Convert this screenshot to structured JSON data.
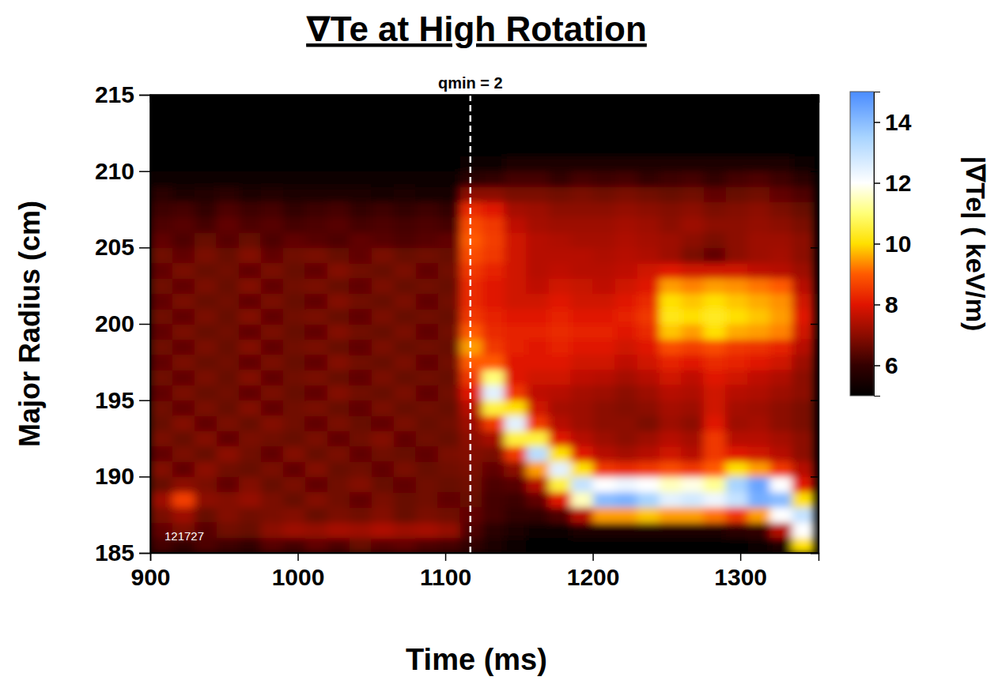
{
  "chart_data": {
    "type": "heatmap",
    "title": "∇Te at High Rotation",
    "x_label": "Time (ms)",
    "y_label": "Major Radius (cm)",
    "xlim": [
      900,
      1353
    ],
    "ylim": [
      185,
      215
    ],
    "xticks": [
      900,
      1000,
      1100,
      1200,
      1300
    ],
    "yticks": [
      185,
      190,
      195,
      200,
      205,
      210,
      215
    ],
    "annotations": [
      {
        "text": "qmin = 2",
        "x": 1117
      },
      {
        "text": "121727"
      }
    ],
    "colorbar": {
      "label": "|∇Te| ( keV/m)",
      "range": [
        5,
        15
      ],
      "ticks": [
        6,
        8,
        10,
        12,
        14
      ]
    },
    "x_edges": [
      900,
      915,
      930,
      945,
      960,
      975,
      990,
      1005,
      1020,
      1035,
      1050,
      1065,
      1080,
      1095,
      1110,
      1125,
      1140,
      1155,
      1170,
      1185,
      1200,
      1215,
      1230,
      1245,
      1260,
      1275,
      1290,
      1305,
      1320,
      1335,
      1350
    ],
    "y_edges": [
      185,
      186,
      187,
      188,
      189,
      190,
      191,
      192,
      193,
      194,
      195,
      196,
      197,
      198,
      199,
      200,
      201,
      202,
      203,
      204,
      205,
      206,
      207,
      208,
      209,
      210,
      211,
      212,
      213,
      214,
      215
    ],
    "z": [
      [
        6.2,
        6.0,
        6.3,
        6.1,
        6.0,
        6.4,
        6.2,
        6.5,
        6.3,
        6.6,
        6.4,
        6.5,
        6.3,
        6.2,
        6.0,
        5.5,
        5.2,
        5.0,
        5.0,
        5.0,
        5.0,
        5.0,
        5.0,
        5.0,
        5.0,
        5.0,
        5.0,
        5.2,
        5.5,
        10.0
      ],
      [
        6.5,
        6.8,
        6.4,
        6.7,
        6.6,
        7.0,
        7.2,
        7.1,
        7.3,
        7.2,
        7.4,
        7.2,
        7.3,
        7.1,
        6.3,
        5.8,
        5.5,
        5.3,
        5.3,
        5.5,
        5.5,
        5.5,
        5.5,
        5.5,
        5.5,
        5.5,
        5.8,
        6.0,
        7.5,
        12.0
      ],
      [
        6.8,
        7.2,
        6.6,
        6.9,
        6.7,
        6.8,
        6.9,
        6.6,
        6.8,
        6.7,
        6.9,
        6.6,
        6.8,
        6.7,
        6.5,
        6.2,
        6.0,
        6.0,
        6.3,
        7.5,
        9.5,
        9.5,
        9.8,
        9.5,
        9.5,
        9.2,
        8.5,
        9.5,
        12.0,
        13.0
      ],
      [
        7.2,
        8.6,
        7.0,
        6.9,
        7.1,
        6.8,
        6.6,
        6.9,
        6.7,
        6.5,
        6.8,
        6.6,
        6.7,
        6.5,
        6.6,
        6.2,
        6.1,
        6.5,
        8.0,
        11.5,
        14.0,
        14.2,
        13.5,
        12.5,
        12.8,
        12.3,
        13.0,
        14.3,
        14.0,
        10.0
      ],
      [
        6.6,
        7.0,
        6.8,
        6.5,
        6.9,
        6.6,
        6.8,
        6.5,
        6.7,
        6.9,
        6.6,
        6.5,
        6.7,
        6.6,
        6.7,
        6.3,
        6.4,
        7.5,
        10.5,
        13.0,
        12.0,
        12.3,
        12.0,
        11.5,
        11.8,
        11.2,
        13.5,
        14.5,
        12.0,
        8.0
      ],
      [
        6.9,
        6.5,
        7.0,
        6.7,
        6.6,
        6.8,
        6.5,
        6.9,
        6.6,
        6.7,
        6.5,
        6.8,
        6.6,
        6.7,
        6.8,
        6.5,
        7.0,
        9.5,
        12.5,
        10.0,
        8.5,
        8.3,
        8.5,
        8.8,
        8.5,
        9.0,
        10.0,
        9.5,
        8.5,
        7.5
      ],
      [
        6.5,
        6.8,
        6.6,
        7.0,
        6.7,
        6.5,
        6.9,
        6.6,
        6.8,
        6.5,
        6.7,
        6.6,
        6.5,
        6.8,
        6.9,
        6.8,
        8.5,
        13.2,
        10.0,
        8.0,
        7.5,
        7.3,
        7.5,
        7.8,
        7.5,
        8.5,
        8.0,
        7.8,
        7.5,
        7.0
      ],
      [
        6.8,
        6.6,
        6.9,
        6.5,
        6.8,
        6.7,
        6.6,
        6.8,
        6.5,
        6.7,
        6.9,
        6.5,
        6.7,
        6.6,
        7.0,
        7.3,
        10.5,
        10.5,
        8.0,
        7.5,
        7.2,
        7.0,
        7.2,
        7.5,
        7.3,
        8.5,
        7.5,
        7.5,
        7.3,
        7.0
      ],
      [
        6.6,
        6.9,
        6.5,
        6.8,
        6.6,
        6.9,
        6.7,
        6.5,
        6.8,
        6.6,
        6.5,
        6.8,
        6.6,
        6.7,
        7.2,
        8.5,
        12.5,
        8.5,
        7.5,
        7.2,
        7.0,
        7.0,
        6.8,
        7.2,
        7.0,
        8.0,
        7.2,
        7.3,
        7.0,
        6.8
      ],
      [
        6.7,
        6.5,
        6.8,
        6.6,
        6.9,
        6.5,
        6.7,
        6.8,
        6.6,
        6.5,
        6.8,
        6.6,
        6.7,
        6.6,
        7.5,
        10.5,
        10.0,
        7.8,
        7.3,
        7.2,
        7.0,
        6.9,
        7.0,
        7.3,
        7.2,
        7.8,
        7.3,
        7.2,
        7.0,
        6.8
      ],
      [
        6.5,
        6.8,
        6.6,
        6.7,
        6.5,
        6.8,
        6.6,
        6.5,
        6.9,
        6.7,
        6.6,
        6.8,
        6.5,
        6.7,
        8.0,
        12.5,
        8.5,
        7.6,
        7.5,
        7.3,
        7.2,
        7.0,
        7.2,
        7.5,
        7.4,
        7.8,
        7.5,
        7.4,
        7.2,
        7.0
      ],
      [
        6.7,
        6.5,
        6.8,
        6.6,
        6.9,
        6.5,
        6.7,
        6.8,
        6.6,
        6.5,
        6.8,
        6.6,
        6.7,
        6.6,
        8.5,
        11.0,
        8.0,
        7.8,
        7.8,
        7.6,
        7.5,
        7.3,
        7.5,
        7.8,
        7.6,
        8.0,
        7.8,
        7.6,
        7.4,
        7.0
      ],
      [
        6.5,
        6.8,
        6.6,
        6.7,
        6.5,
        6.8,
        6.6,
        6.5,
        6.9,
        6.7,
        6.6,
        6.8,
        6.5,
        6.7,
        9.0,
        9.0,
        8.0,
        8.0,
        8.0,
        7.8,
        7.8,
        7.6,
        7.8,
        8.2,
        8.0,
        8.3,
        8.2,
        8.0,
        7.8,
        7.2
      ],
      [
        6.7,
        6.5,
        6.8,
        6.6,
        6.9,
        6.5,
        6.7,
        6.8,
        6.6,
        6.5,
        6.8,
        6.6,
        6.7,
        6.6,
        9.5,
        8.5,
        8.2,
        8.0,
        8.2,
        8.0,
        8.0,
        7.8,
        8.0,
        8.8,
        8.6,
        8.8,
        8.5,
        8.4,
        8.2,
        7.5
      ],
      [
        6.5,
        6.8,
        6.6,
        6.7,
        6.5,
        6.8,
        6.6,
        6.5,
        6.9,
        6.7,
        6.6,
        6.8,
        6.5,
        6.7,
        9.0,
        8.3,
        8.2,
        8.2,
        8.3,
        8.2,
        8.2,
        8.0,
        8.3,
        9.8,
        9.5,
        10.0,
        9.6,
        9.5,
        9.3,
        7.8
      ],
      [
        6.7,
        6.5,
        6.8,
        6.6,
        6.9,
        6.5,
        6.7,
        6.8,
        6.6,
        6.5,
        6.8,
        6.6,
        6.7,
        6.6,
        8.5,
        8.2,
        8.0,
        8.0,
        8.2,
        8.0,
        8.0,
        8.2,
        8.5,
        10.2,
        10.0,
        10.3,
        10.0,
        9.8,
        9.5,
        8.0
      ],
      [
        6.5,
        6.8,
        6.6,
        6.7,
        6.5,
        6.8,
        6.6,
        6.5,
        6.9,
        6.7,
        6.6,
        6.8,
        6.5,
        6.7,
        8.3,
        8.0,
        7.8,
        7.8,
        8.0,
        7.8,
        7.8,
        8.0,
        8.3,
        10.0,
        9.8,
        10.0,
        9.8,
        9.6,
        9.4,
        7.8
      ],
      [
        6.7,
        6.5,
        6.8,
        6.6,
        6.9,
        6.5,
        6.7,
        6.8,
        6.6,
        6.5,
        6.8,
        6.6,
        6.7,
        6.6,
        8.3,
        8.0,
        7.8,
        7.6,
        7.8,
        7.7,
        7.6,
        7.8,
        8.0,
        9.5,
        9.3,
        9.5,
        9.4,
        9.2,
        9.0,
        7.5
      ],
      [
        6.5,
        6.8,
        6.6,
        6.7,
        6.5,
        6.8,
        6.6,
        6.5,
        6.9,
        6.7,
        6.6,
        6.8,
        6.5,
        6.7,
        8.5,
        8.2,
        7.8,
        7.5,
        7.6,
        7.5,
        7.5,
        7.6,
        7.8,
        8.0,
        7.8,
        7.8,
        7.8,
        7.6,
        7.5,
        7.2
      ],
      [
        6.7,
        6.5,
        6.8,
        6.6,
        6.9,
        6.5,
        6.7,
        6.8,
        6.6,
        6.5,
        6.8,
        6.6,
        6.7,
        6.6,
        8.8,
        8.5,
        7.8,
        7.5,
        7.5,
        7.5,
        7.4,
        7.5,
        7.4,
        7.2,
        6.8,
        6.5,
        7.0,
        7.2,
        7.3,
        7.0
      ],
      [
        6.5,
        6.3,
        6.6,
        6.4,
        6.6,
        6.3,
        6.5,
        6.4,
        6.3,
        6.5,
        6.4,
        6.3,
        6.4,
        6.5,
        9.0,
        8.6,
        7.8,
        7.5,
        7.4,
        7.3,
        7.3,
        7.4,
        7.3,
        7.2,
        7.0,
        6.8,
        7.0,
        7.2,
        7.2,
        7.0
      ],
      [
        6.3,
        6.4,
        6.2,
        6.5,
        6.3,
        6.4,
        6.2,
        6.3,
        6.4,
        6.2,
        6.3,
        6.2,
        6.3,
        6.2,
        8.8,
        8.5,
        7.6,
        7.3,
        7.2,
        7.2,
        7.2,
        7.3,
        7.2,
        7.0,
        7.2,
        7.0,
        7.0,
        7.1,
        7.0,
        6.8
      ],
      [
        6.1,
        6.2,
        6.0,
        6.3,
        6.1,
        6.2,
        6.0,
        6.1,
        6.2,
        6.0,
        6.1,
        6.0,
        6.1,
        6.0,
        8.3,
        8.0,
        7.3,
        7.2,
        7.0,
        7.0,
        7.0,
        7.1,
        7.0,
        6.9,
        7.0,
        6.8,
        6.9,
        7.0,
        6.8,
        6.6
      ],
      [
        5.8,
        5.6,
        5.7,
        5.8,
        5.6,
        5.7,
        5.6,
        5.5,
        5.6,
        5.5,
        5.4,
        5.5,
        5.4,
        5.4,
        7.0,
        7.0,
        6.8,
        6.8,
        6.7,
        6.8,
        6.7,
        6.8,
        6.7,
        6.6,
        6.7,
        6.5,
        6.6,
        6.7,
        6.5,
        6.3
      ],
      [
        5.3,
        5.3,
        5.3,
        5.3,
        5.3,
        5.3,
        5.3,
        5.3,
        5.3,
        5.3,
        5.3,
        5.3,
        5.3,
        5.3,
        5.8,
        6.0,
        6.2,
        6.2,
        6.0,
        6.2,
        6.1,
        6.2,
        6.0,
        6.1,
        6.2,
        6.0,
        6.2,
        6.3,
        6.1,
        5.8
      ],
      [
        5.0,
        5.0,
        5.0,
        5.0,
        5.0,
        5.0,
        5.0,
        5.0,
        5.0,
        5.0,
        5.0,
        5.0,
        5.0,
        5.0,
        5.2,
        5.3,
        5.5,
        5.6,
        5.5,
        5.5,
        5.6,
        5.5,
        5.5,
        5.6,
        5.5,
        5.5,
        5.6,
        5.5,
        5.5,
        5.3
      ],
      [
        5.0,
        5.0,
        5.0,
        5.0,
        5.0,
        5.0,
        5.0,
        5.0,
        5.0,
        5.0,
        5.0,
        5.0,
        5.0,
        5.0,
        5.0,
        5.0,
        5.0,
        5.0,
        5.0,
        5.0,
        5.0,
        5.0,
        5.0,
        5.0,
        5.0,
        5.0,
        5.0,
        5.0,
        5.0,
        5.0
      ],
      [
        5.0,
        5.0,
        5.0,
        5.0,
        5.0,
        5.0,
        5.0,
        5.0,
        5.0,
        5.0,
        5.0,
        5.0,
        5.0,
        5.0,
        5.0,
        5.0,
        5.0,
        5.0,
        5.0,
        5.0,
        5.0,
        5.0,
        5.0,
        5.0,
        5.0,
        5.0,
        5.0,
        5.0,
        5.0,
        5.0
      ],
      [
        5.0,
        5.0,
        5.0,
        5.0,
        5.0,
        5.0,
        5.0,
        5.0,
        5.0,
        5.0,
        5.0,
        5.0,
        5.0,
        5.0,
        5.0,
        5.0,
        5.0,
        5.0,
        5.0,
        5.0,
        5.0,
        5.0,
        5.0,
        5.0,
        5.0,
        5.0,
        5.0,
        5.0,
        5.0,
        5.0
      ],
      [
        5.0,
        5.0,
        5.0,
        5.0,
        5.0,
        5.0,
        5.0,
        5.0,
        5.0,
        5.0,
        5.0,
        5.0,
        5.0,
        5.0,
        5.0,
        5.0,
        5.0,
        5.0,
        5.0,
        5.0,
        5.0,
        5.0,
        5.0,
        5.0,
        5.0,
        5.0,
        5.0,
        5.0,
        5.0,
        5.0
      ]
    ]
  }
}
